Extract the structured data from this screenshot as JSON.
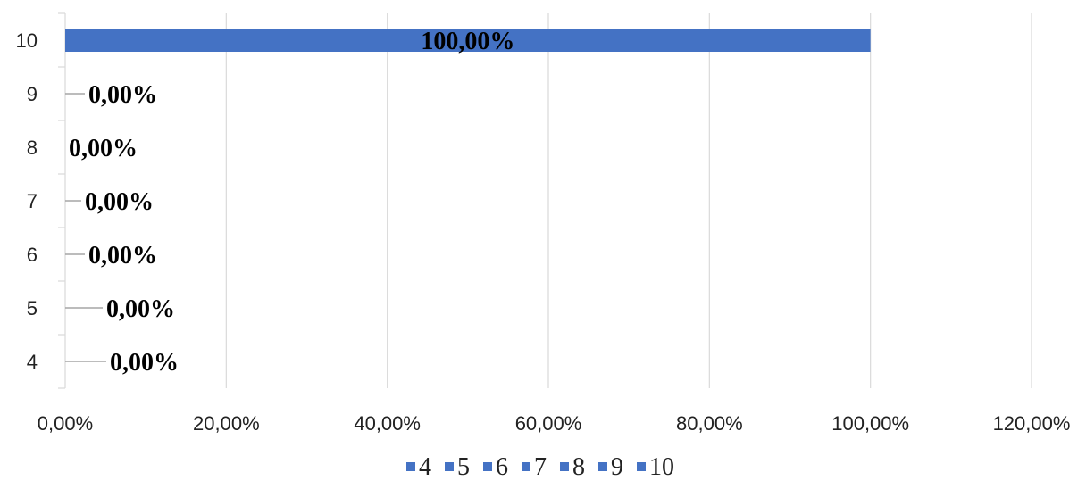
{
  "chart_data": {
    "type": "bar",
    "orientation": "horizontal",
    "categories": [
      "4",
      "5",
      "6",
      "7",
      "8",
      "9",
      "10"
    ],
    "series": [
      {
        "name": "4",
        "values": [
          0,
          null,
          null,
          null,
          null,
          null,
          null
        ],
        "labels": [
          "0,00%",
          null,
          null,
          null,
          null,
          null,
          null
        ]
      },
      {
        "name": "5",
        "values": [
          null,
          0,
          null,
          null,
          null,
          null,
          null
        ],
        "labels": [
          null,
          "0,00%",
          null,
          null,
          null,
          null,
          null
        ]
      },
      {
        "name": "6",
        "values": [
          null,
          null,
          0,
          null,
          null,
          null,
          null
        ],
        "labels": [
          null,
          null,
          "0,00%",
          null,
          null,
          null,
          null
        ]
      },
      {
        "name": "7",
        "values": [
          null,
          null,
          null,
          0,
          null,
          null,
          null
        ],
        "labels": [
          null,
          null,
          null,
          "0,00%",
          null,
          null,
          null
        ]
      },
      {
        "name": "8",
        "values": [
          null,
          null,
          null,
          null,
          0,
          null,
          null
        ],
        "labels": [
          null,
          null,
          null,
          null,
          "0,00%",
          null,
          null
        ]
      },
      {
        "name": "9",
        "values": [
          null,
          null,
          null,
          null,
          null,
          0,
          null
        ],
        "labels": [
          null,
          null,
          null,
          null,
          null,
          "0,00%",
          null
        ]
      },
      {
        "name": "10",
        "values": [
          null,
          null,
          null,
          null,
          null,
          null,
          1.0
        ],
        "labels": [
          null,
          null,
          null,
          null,
          null,
          null,
          "100,00%"
        ]
      }
    ],
    "x_ticks": [
      "0,00%",
      "20,00%",
      "40,00%",
      "60,00%",
      "80,00%",
      "100,00%",
      "120,00%"
    ],
    "xlim": [
      0,
      1.2
    ],
    "grid": true,
    "legend": "bottom",
    "title": "",
    "xlabel": "",
    "ylabel": "",
    "color": "#4472C4"
  }
}
